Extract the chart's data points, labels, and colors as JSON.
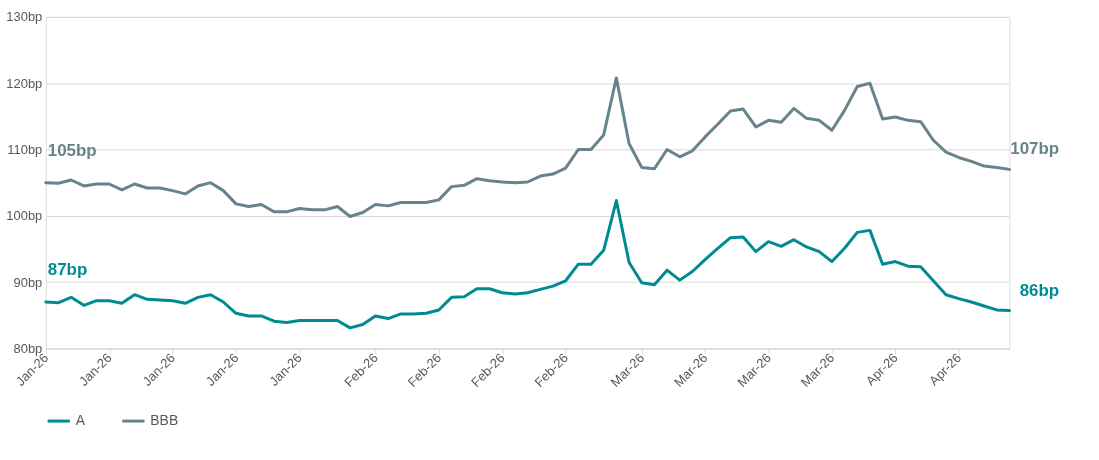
{
  "chart_data": {
    "type": "line",
    "categories": [
      "Jan-26",
      null,
      null,
      null,
      null,
      "Jan-26",
      null,
      null,
      null,
      null,
      "Jan-26",
      null,
      null,
      null,
      null,
      "Jan-26",
      null,
      null,
      null,
      null,
      "Jan-26",
      null,
      null,
      null,
      null,
      null,
      "Feb-26",
      null,
      null,
      null,
      null,
      "Feb-26",
      null,
      null,
      null,
      null,
      "Feb-26",
      null,
      null,
      null,
      null,
      "Feb-26",
      null,
      null,
      null,
      null,
      null,
      "Mar-26",
      null,
      null,
      null,
      null,
      "Mar-26",
      null,
      null,
      null,
      null,
      "Mar-26",
      null,
      null,
      null,
      null,
      "Mar-26",
      null,
      null,
      null,
      null,
      "Apr-26",
      null,
      null,
      null,
      null,
      "Apr-26",
      null,
      null,
      null,
      null
    ],
    "ylim": [
      80,
      130
    ],
    "yticks": [
      {
        "value": 80,
        "label": "80bp"
      },
      {
        "value": 90,
        "label": "90bp"
      },
      {
        "value": 100,
        "label": "100bp"
      },
      {
        "value": 110,
        "label": "110bp"
      },
      {
        "value": 120,
        "label": "120bp"
      },
      {
        "value": 130,
        "label": "130bp"
      }
    ],
    "grid": "y",
    "legend": "bottom",
    "marker": "none",
    "line_style": "solid",
    "series": [
      {
        "name": "A",
        "color": "#008b94",
        "values": [
          87.0,
          86.9,
          87.7,
          86.5,
          87.2,
          87.2,
          86.8,
          88.1,
          87.4,
          87.3,
          87.2,
          86.8,
          87.7,
          88.1,
          87.0,
          85.3,
          84.9,
          84.9,
          84.1,
          83.9,
          84.2,
          84.2,
          84.2,
          84.2,
          83.1,
          83.6,
          84.9,
          84.5,
          85.2,
          85.2,
          85.3,
          85.8,
          87.7,
          87.8,
          89.0,
          89.0,
          88.4,
          88.2,
          88.4,
          88.9,
          89.4,
          90.2,
          92.7,
          92.7,
          94.8,
          102.3,
          93.0,
          89.9,
          89.6,
          91.8,
          90.3,
          91.6,
          93.4,
          95.1,
          96.7,
          96.8,
          94.6,
          96.1,
          95.4,
          96.4,
          95.3,
          94.6,
          93.1,
          95.1,
          97.5,
          97.8,
          92.7,
          93.1,
          92.4,
          92.3,
          90.2,
          88.1,
          87.5,
          87.0,
          86.4,
          85.8,
          85.7
        ]
      },
      {
        "name": "BBB",
        "color": "#67838b",
        "values": [
          105.0,
          104.9,
          105.4,
          104.5,
          104.8,
          104.8,
          103.9,
          104.8,
          104.2,
          104.2,
          103.8,
          103.3,
          104.5,
          105.0,
          103.8,
          101.8,
          101.4,
          101.7,
          100.6,
          100.6,
          101.1,
          100.9,
          100.9,
          101.4,
          99.9,
          100.5,
          101.7,
          101.5,
          102.0,
          102.0,
          102.0,
          102.4,
          104.4,
          104.6,
          105.6,
          105.3,
          105.1,
          105.0,
          105.1,
          106.0,
          106.3,
          107.2,
          110.0,
          110.0,
          112.2,
          120.8,
          110.9,
          107.3,
          107.1,
          110.0,
          108.9,
          109.8,
          111.9,
          113.8,
          115.8,
          116.1,
          113.4,
          114.4,
          114.1,
          116.2,
          114.7,
          114.4,
          112.9,
          115.9,
          119.5,
          120.0,
          114.6,
          114.9,
          114.4,
          114.2,
          111.4,
          109.6,
          108.8,
          108.2,
          107.5,
          107.3,
          107.0
        ]
      }
    ],
    "annotations": [
      "87bp",
      "105bp",
      "86bp",
      "107bp"
    ]
  }
}
